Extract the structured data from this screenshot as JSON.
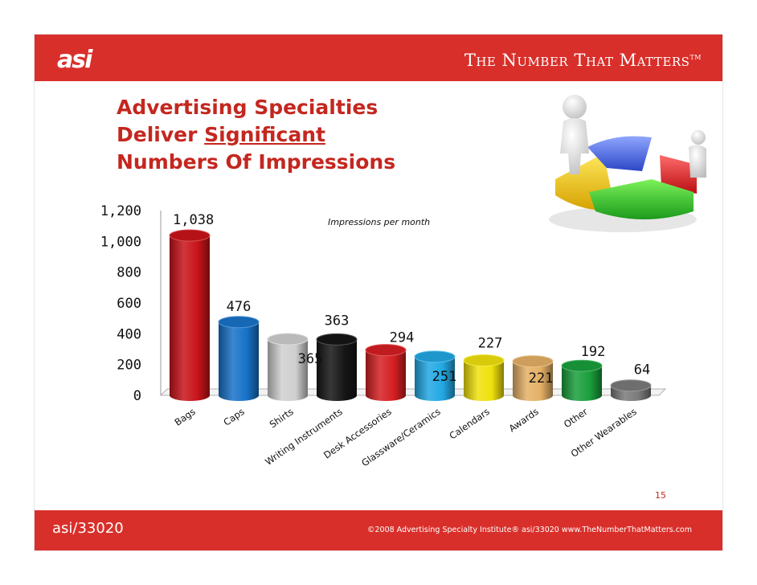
{
  "header": {
    "logo": "asi",
    "tagline": "The Number That Matters",
    "tagline_mark": "TM"
  },
  "title": {
    "line1": "Advertising Specialties",
    "line2_prefix": "Deliver ",
    "line2_emphasis": "Significant",
    "line3": "Numbers Of Impressions"
  },
  "page_number": "15",
  "footer": {
    "left": "asi/33020",
    "right": "©2008 Advertising Specialty Institute® asi/33020   www.TheNumberThatMatters.com"
  },
  "chart_data": {
    "type": "bar",
    "title": "",
    "annotation": "Impressions per month",
    "xlabel": "",
    "ylabel": "",
    "ylim": [
      0,
      1200
    ],
    "yticks": [
      "0",
      "200",
      "400",
      "600",
      "800",
      "1,000",
      "1,200"
    ],
    "grid": false,
    "categories": [
      "Bags",
      "Caps",
      "Shirts",
      "Writing Instruments",
      "Desk Accessories",
      "Glassware/Ceramics",
      "Calendars",
      "Awards",
      "Other",
      "Other Wearables"
    ],
    "values": [
      1038,
      476,
      365,
      363,
      294,
      251,
      227,
      221,
      192,
      64
    ],
    "value_labels": [
      "1,038",
      "476",
      "365",
      "363",
      "294",
      "251",
      "227",
      "221",
      "192",
      "64"
    ],
    "colors": [
      "#c8141a",
      "#1872c8",
      "#cfcfcf",
      "#151515",
      "#d51f22",
      "#22a8e3",
      "#f0e10c",
      "#e4b066",
      "#1a9f3c",
      "#7a7a7a"
    ]
  }
}
